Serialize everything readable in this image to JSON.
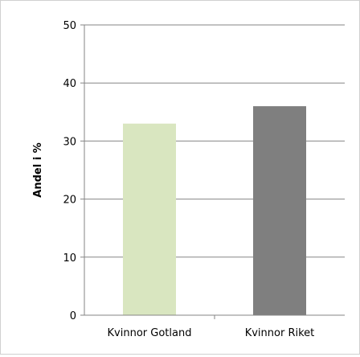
{
  "chart_data": {
    "type": "bar",
    "categories": [
      "Kvinnor Gotland",
      "Kvinnor Riket"
    ],
    "values": [
      33,
      36
    ],
    "colors": [
      "#d9e6c0",
      "#7f7f7f"
    ],
    "ylabel": "Andel i %",
    "xlabel": "",
    "ylim": [
      0,
      50
    ],
    "yticks": [
      0,
      10,
      20,
      30,
      40,
      50
    ],
    "grid": true,
    "legend": "none"
  }
}
